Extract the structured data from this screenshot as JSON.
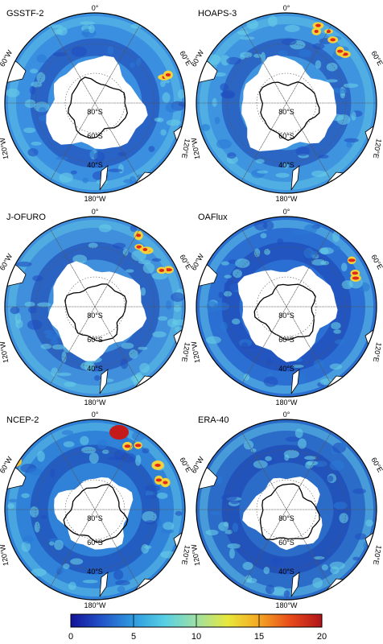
{
  "figure": {
    "panels": [
      {
        "label": "GSSTF-2",
        "pattern": "gsstf"
      },
      {
        "label": "HOAPS-3",
        "pattern": "hoaps"
      },
      {
        "label": "J-OFURO",
        "pattern": "jofuro"
      },
      {
        "label": "OAFlux",
        "pattern": "oaflux"
      },
      {
        "label": "NCEP-2",
        "pattern": "ncep"
      },
      {
        "label": "ERA-40",
        "pattern": "era"
      }
    ],
    "map_labels": {
      "top": "0°",
      "bottom": "180°W",
      "left_upper": "60°W",
      "left_lower": "120°W",
      "right_upper": "60°E",
      "right_lower": "120°E",
      "lat_80": "80°S",
      "lat_60": "60°S",
      "lat_40": "40°S"
    }
  },
  "colorbar": {
    "ticks": [
      0,
      5,
      10,
      15,
      20
    ],
    "range": [
      0,
      20
    ],
    "colors": [
      "#13129a",
      "#2255c8",
      "#2f9be0",
      "#57d0e4",
      "#9ee0a4",
      "#e8e83c",
      "#f5a623",
      "#e84a1a",
      "#b0141a"
    ]
  }
}
